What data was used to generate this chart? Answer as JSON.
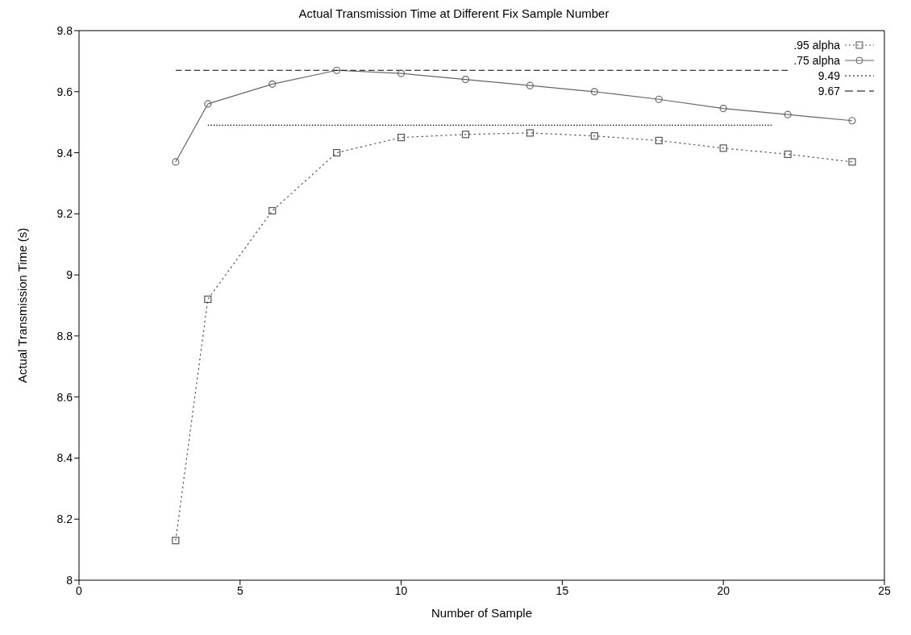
{
  "chart_data": {
    "type": "line",
    "title": "Actual Transmission Time at Different Fix Sample Number",
    "xlabel": "Number of Sample",
    "ylabel": "Actual Transmission Time (s)",
    "xlim": [
      0,
      25
    ],
    "xticks": [
      0,
      5,
      10,
      15,
      20,
      25
    ],
    "ylim": [
      8,
      9.8
    ],
    "yticks": [
      8,
      8.2,
      8.4,
      8.6,
      8.8,
      9,
      9.2,
      9.4,
      9.6,
      9.8
    ],
    "grid": false,
    "legend": "top right",
    "series": [
      {
        "name": ".95 alpha",
        "color": "#555555",
        "marker": "square",
        "line_style": "dotted",
        "x": [
          3,
          4,
          6,
          8,
          10,
          12,
          14,
          16,
          18,
          20,
          22,
          24
        ],
        "values": [
          8.13,
          8.92,
          9.21,
          9.4,
          9.45,
          9.46,
          9.465,
          9.455,
          9.44,
          9.415,
          9.395,
          9.37
        ]
      },
      {
        "name": ".75 alpha",
        "color": "#666666",
        "marker": "circle",
        "line_style": "solid",
        "x": [
          3,
          4,
          6,
          8,
          10,
          12,
          14,
          16,
          18,
          20,
          22,
          24
        ],
        "values": [
          9.37,
          9.56,
          9.625,
          9.67,
          9.66,
          9.64,
          9.62,
          9.6,
          9.575,
          9.545,
          9.525,
          9.505
        ]
      },
      {
        "name": "9.49",
        "color": "#000000",
        "marker": "none",
        "line_style": "dotted",
        "x": [
          4,
          21.5
        ],
        "values": [
          9.49,
          9.49
        ]
      },
      {
        "name": "9.67",
        "color": "#000000",
        "marker": "none",
        "line_style": "dashed",
        "x": [
          3,
          22
        ],
        "values": [
          9.67,
          9.67
        ]
      }
    ]
  }
}
